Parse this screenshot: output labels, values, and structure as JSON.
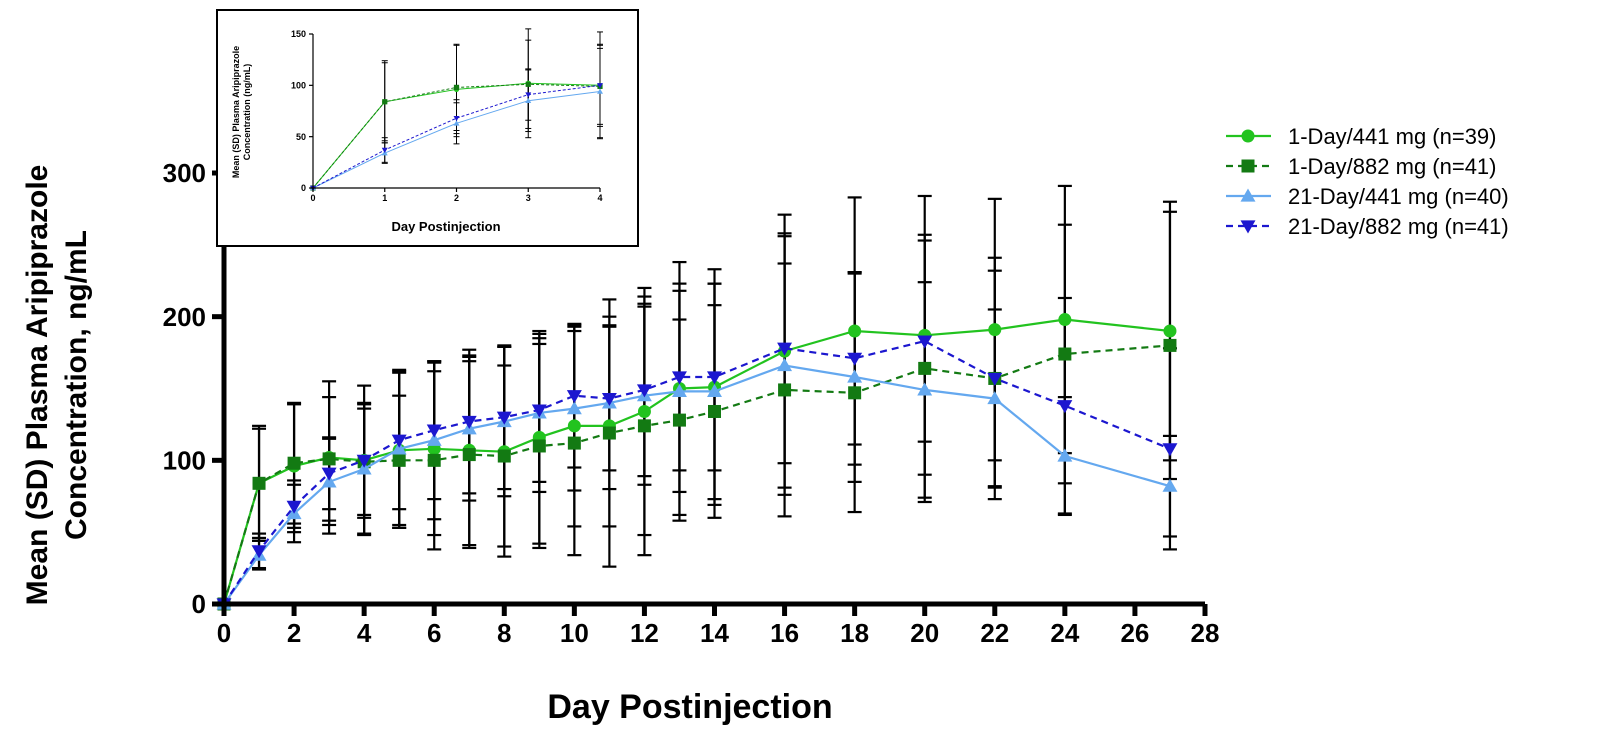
{
  "chart_data": [
    {
      "type": "line",
      "name": "main",
      "xlabel": "Day Postinjection",
      "ylabel_line1": "Mean (SD) Plasma Aripiprazole",
      "ylabel_line2": "Concentration, ng/mL",
      "xlim": [
        0,
        28
      ],
      "ylim": [
        0,
        300
      ],
      "xticks": [
        0,
        2,
        4,
        6,
        8,
        10,
        12,
        14,
        16,
        18,
        20,
        22,
        24,
        26,
        28
      ],
      "yticks": [
        0,
        100,
        200,
        300
      ],
      "grid": false,
      "legend_position": "right",
      "series": [
        {
          "name": "1-Day/441 mg (n=39)",
          "color": "#22c31f",
          "marker": "circle",
          "dashed": false,
          "points": [
            [
              0,
              0
            ],
            [
              1,
              84
            ],
            [
              2,
              96
            ],
            [
              3,
              102
            ],
            [
              4,
              100
            ],
            [
              5,
              107
            ],
            [
              6,
              108
            ],
            [
              7,
              107
            ],
            [
              8,
              106
            ],
            [
              9,
              116
            ],
            [
              10,
              124
            ],
            [
              11,
              124
            ],
            [
              12,
              134
            ],
            [
              13,
              150
            ],
            [
              14,
              151
            ],
            [
              16,
              176
            ],
            [
              18,
              190
            ],
            [
              20,
              187
            ],
            [
              22,
              191
            ],
            [
              24,
              198
            ],
            [
              27,
              190
            ]
          ],
          "sd": [
            0,
            40,
            43,
            53,
            52,
            54,
            60,
            66,
            73,
            74,
            70,
            70,
            86,
            88,
            82,
            95,
            93,
            97,
            91,
            93,
            90
          ]
        },
        {
          "name": "1-Day/882 mg (n=41)",
          "color": "#137a13",
          "marker": "square",
          "dashed": true,
          "points": [
            [
              0,
              0
            ],
            [
              1,
              84
            ],
            [
              2,
              98
            ],
            [
              3,
              101
            ],
            [
              4,
              99
            ],
            [
              5,
              100
            ],
            [
              6,
              100
            ],
            [
              7,
              104
            ],
            [
              8,
              103
            ],
            [
              9,
              110
            ],
            [
              10,
              112
            ],
            [
              11,
              119
            ],
            [
              12,
              124
            ],
            [
              13,
              128
            ],
            [
              14,
              134
            ],
            [
              16,
              149
            ],
            [
              18,
              147
            ],
            [
              20,
              164
            ],
            [
              22,
              157
            ],
            [
              24,
              174
            ],
            [
              27,
              180
            ]
          ],
          "sd": [
            0,
            38,
            42,
            43,
            37,
            45,
            62,
            65,
            63,
            71,
            78,
            93,
            90,
            70,
            74,
            88,
            83,
            93,
            84,
            90,
            93
          ]
        },
        {
          "name": "21-Day/441 mg (n=40)",
          "color": "#64a8ef",
          "marker": "triangle-up",
          "dashed": false,
          "points": [
            [
              0,
              0
            ],
            [
              1,
              34
            ],
            [
              2,
              63
            ],
            [
              3,
              85
            ],
            [
              4,
              94
            ],
            [
              5,
              108
            ],
            [
              6,
              114
            ],
            [
              7,
              122
            ],
            [
              8,
              127
            ],
            [
              9,
              133
            ],
            [
              10,
              136
            ],
            [
              11,
              140
            ],
            [
              12,
              145
            ],
            [
              13,
              148
            ],
            [
              14,
              148
            ],
            [
              16,
              166
            ],
            [
              18,
              158
            ],
            [
              20,
              149
            ],
            [
              22,
              143
            ],
            [
              24,
              103
            ],
            [
              27,
              82
            ]
          ],
          "sd": [
            0,
            10,
            20,
            30,
            45,
            55,
            55,
            50,
            52,
            55,
            57,
            60,
            62,
            70,
            75,
            90,
            73,
            75,
            62,
            41,
            35
          ]
        },
        {
          "name": "21-Day/882 mg (n=41)",
          "color": "#1c17cf",
          "marker": "triangle-down",
          "dashed": true,
          "points": [
            [
              0,
              0
            ],
            [
              1,
              37
            ],
            [
              2,
              68
            ],
            [
              3,
              91
            ],
            [
              4,
              100
            ],
            [
              5,
              114
            ],
            [
              6,
              121
            ],
            [
              7,
              127
            ],
            [
              8,
              130
            ],
            [
              9,
              135
            ],
            [
              10,
              145
            ],
            [
              11,
              143
            ],
            [
              12,
              149
            ],
            [
              13,
              158
            ],
            [
              14,
              158
            ],
            [
              16,
              178
            ],
            [
              18,
              171
            ],
            [
              20,
              183
            ],
            [
              22,
              157
            ],
            [
              24,
              138
            ],
            [
              27,
              108
            ]
          ],
          "sd": [
            0,
            12,
            18,
            25,
            40,
            48,
            48,
            50,
            50,
            50,
            50,
            50,
            60,
            65,
            65,
            80,
            60,
            70,
            75,
            75,
            70
          ]
        }
      ]
    },
    {
      "type": "line",
      "name": "inset",
      "xlabel": "Day Postinjection",
      "ylabel_line1": "Mean (SD) Plasma Aripiprazole",
      "ylabel_line2": "Concentration (ng/mL)",
      "xlim": [
        0,
        4
      ],
      "ylim": [
        0,
        150
      ],
      "xticks": [
        0,
        1,
        2,
        3,
        4
      ],
      "yticks": [
        0,
        50,
        100,
        150
      ],
      "series": [
        {
          "name": "1-Day/441 mg (n=39)",
          "color": "#22c31f",
          "marker": "circle",
          "dashed": false,
          "points": [
            [
              0,
              0
            ],
            [
              1,
              84
            ],
            [
              2,
              96
            ],
            [
              3,
              102
            ],
            [
              4,
              100
            ]
          ],
          "sd": [
            0,
            40,
            43,
            53,
            52
          ]
        },
        {
          "name": "1-Day/882 mg (n=41)",
          "color": "#137a13",
          "marker": "square",
          "dashed": true,
          "points": [
            [
              0,
              0
            ],
            [
              1,
              84
            ],
            [
              2,
              98
            ],
            [
              3,
              101
            ],
            [
              4,
              99
            ]
          ],
          "sd": [
            0,
            38,
            42,
            43,
            37
          ]
        },
        {
          "name": "21-Day/441 mg (n=40)",
          "color": "#64a8ef",
          "marker": "triangle-up",
          "dashed": false,
          "points": [
            [
              0,
              0
            ],
            [
              1,
              34
            ],
            [
              2,
              63
            ],
            [
              3,
              85
            ],
            [
              4,
              94
            ]
          ],
          "sd": [
            0,
            10,
            20,
            30,
            45
          ]
        },
        {
          "name": "21-Day/882 mg (n=41)",
          "color": "#1c17cf",
          "marker": "triangle-down",
          "dashed": true,
          "points": [
            [
              0,
              0
            ],
            [
              1,
              37
            ],
            [
              2,
              68
            ],
            [
              3,
              91
            ],
            [
              4,
              100
            ]
          ],
          "sd": [
            0,
            12,
            18,
            25,
            40
          ]
        }
      ]
    }
  ]
}
